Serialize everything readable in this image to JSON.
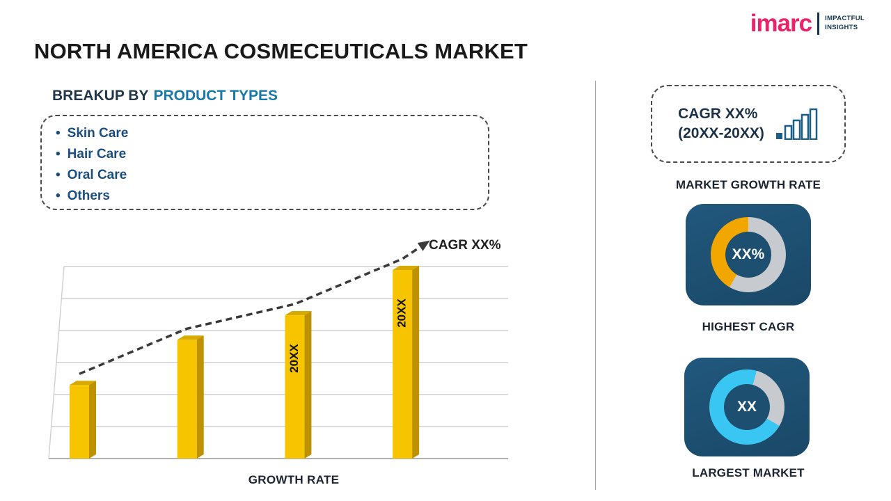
{
  "page": {
    "title": "NORTH AMERICA COSMECEUTICALS MARKET"
  },
  "logo": {
    "brand": "imarc",
    "tagline_line1": "IMPACTFUL",
    "tagline_line2": "INSIGHTS"
  },
  "left_panel": {
    "heading_prefix": "BREAKUP BY",
    "heading_highlight": "PRODUCT TYPES",
    "bullet": "•",
    "product_types": [
      "Skin Care",
      "Hair Care",
      "Oral Care",
      "Others"
    ]
  },
  "chart_data": [
    {
      "type": "bar",
      "title": "GROWTH RATE",
      "xlabel": "GROWTH RATE",
      "ylabel": "",
      "categories": [
        "",
        "",
        "20XX",
        "20XX"
      ],
      "values": [
        39,
        63,
        76,
        100
      ],
      "ylim": [
        0,
        100
      ],
      "grid": true,
      "legend": "none",
      "bar_color": "#F6C500",
      "bar_side_color": "#BD9100",
      "bar_top_color": "#D8A900",
      "trend_label": "CAGR XX%",
      "trend_style": "dashed-arrow-up"
    },
    {
      "type": "pie",
      "title": "HIGHEST CAGR",
      "center_label": "XX%",
      "segments": [
        {
          "name": "remainder",
          "color": "#C7CBCF",
          "from": 0,
          "to": 210
        },
        {
          "name": "highlight",
          "color": "#F2A600",
          "from": 210,
          "to": 360
        }
      ]
    },
    {
      "type": "pie",
      "title": "LARGEST MARKET",
      "center_label": "XX",
      "segments": [
        {
          "name": "highlight",
          "color": "#3AC6F2",
          "from": 0,
          "to": 15
        },
        {
          "name": "remainder",
          "color": "#C7CBCF",
          "from": 15,
          "to": 120
        },
        {
          "name": "highlight2",
          "color": "#3AC6F2",
          "from": 120,
          "to": 360
        }
      ]
    }
  ],
  "right_panel": {
    "cagr_line1": "CAGR XX%",
    "cagr_line2": "(20XX-20XX)",
    "market_growth_label": "MARKET GROWTH RATE",
    "highest_cagr_label": "HIGHEST CAGR",
    "largest_market_label": "LARGEST MARKET",
    "tile_color": "#1D4F71"
  }
}
